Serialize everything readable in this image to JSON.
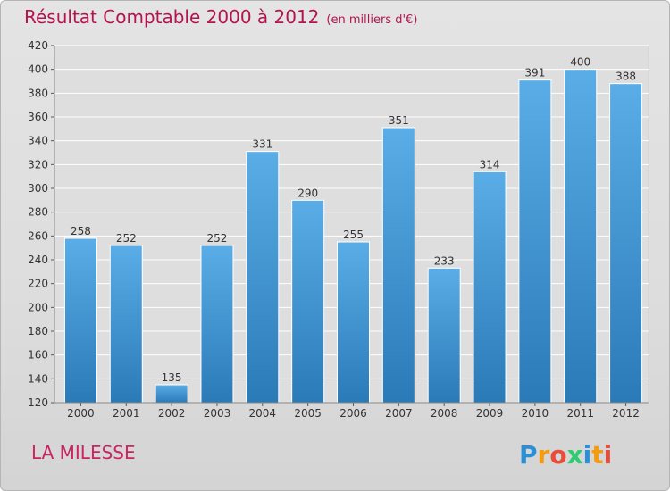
{
  "header": {
    "title": "Résultat Comptable 2000 à 2012",
    "subtitle": "(en milliers d'€)"
  },
  "footer": {
    "commune": "LA MILESSE",
    "logo_text": "Proxiti"
  },
  "colors": {
    "bar_top": "#5aade6",
    "bar_bottom": "#2a7ab8",
    "title": "#b5124e",
    "commune": "#cc2460"
  },
  "chart_data": {
    "type": "bar",
    "title": "Résultat Comptable 2000 à 2012",
    "xlabel": "",
    "ylabel": "",
    "categories": [
      "2000",
      "2001",
      "2002",
      "2003",
      "2004",
      "2005",
      "2006",
      "2007",
      "2008",
      "2009",
      "2010",
      "2011",
      "2012"
    ],
    "values": [
      258,
      252,
      135,
      252,
      331,
      290,
      255,
      351,
      233,
      314,
      391,
      400,
      388
    ],
    "ylim": [
      120,
      420
    ],
    "yticks": [
      120,
      140,
      160,
      180,
      200,
      220,
      240,
      260,
      280,
      300,
      320,
      340,
      360,
      380,
      400,
      420
    ],
    "grid": true,
    "data_labels": true
  }
}
